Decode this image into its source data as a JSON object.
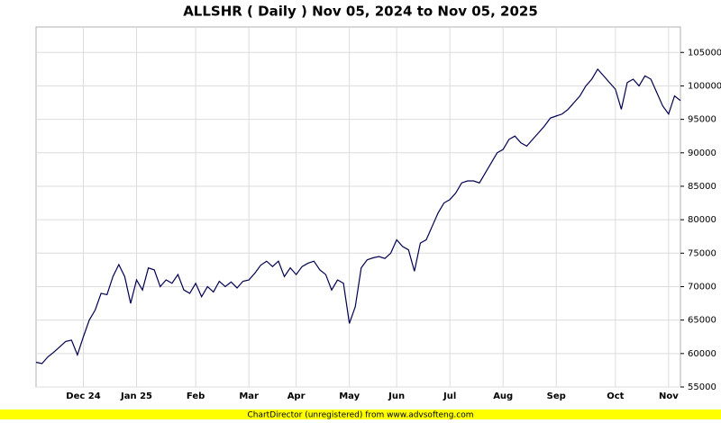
{
  "chart_data": {
    "type": "line",
    "title": "ALLSHR ( Daily ) Nov 05, 2024 to Nov 05, 2025",
    "footer": "ChartDirector (unregistered) from www.advsofteng.com",
    "categories": [
      null,
      null,
      null,
      null,
      null,
      null,
      null,
      null,
      "Dec 24",
      null,
      null,
      null,
      null,
      null,
      null,
      null,
      null,
      "Jan 25",
      null,
      null,
      null,
      null,
      null,
      null,
      null,
      null,
      null,
      "Feb",
      null,
      null,
      null,
      null,
      null,
      null,
      null,
      null,
      "Mar",
      null,
      null,
      null,
      null,
      null,
      null,
      null,
      "Apr",
      null,
      null,
      null,
      null,
      null,
      null,
      null,
      null,
      "May",
      null,
      null,
      null,
      null,
      null,
      null,
      null,
      "Jun",
      null,
      null,
      null,
      null,
      null,
      null,
      null,
      null,
      "Jul",
      null,
      null,
      null,
      null,
      null,
      null,
      null,
      null,
      "Aug",
      null,
      null,
      null,
      null,
      null,
      null,
      null,
      null,
      "Sep",
      null,
      null,
      null,
      null,
      null,
      null,
      null,
      null,
      null,
      "Oct",
      null,
      null,
      null,
      null,
      null,
      null,
      null,
      null,
      "Nov",
      null,
      null
    ],
    "series": [
      {
        "name": "ALLSHR",
        "color": "#000050",
        "values": [
          58700,
          58500,
          59500,
          60200,
          61000,
          61800,
          62000,
          59800,
          62500,
          65000,
          66500,
          69000,
          68800,
          71500,
          73300,
          71500,
          67500,
          71000,
          69500,
          72800,
          72500,
          70000,
          71000,
          70500,
          71800,
          69500,
          69000,
          70500,
          68500,
          70000,
          69200,
          70800,
          70000,
          70700,
          69800,
          70800,
          71000,
          72000,
          73200,
          73800,
          73000,
          73800,
          71500,
          72800,
          71800,
          73000,
          73500,
          73800,
          72500,
          71800,
          69500,
          71000,
          70500,
          64500,
          67000,
          72800,
          74000,
          74300,
          74500,
          74200,
          75000,
          77000,
          76000,
          75500,
          72300,
          76500,
          77000,
          79000,
          81000,
          82500,
          83000,
          84000,
          85500,
          85800,
          85800,
          85500,
          87000,
          88500,
          90000,
          90500,
          92000,
          92500,
          91500,
          91000,
          92000,
          93000,
          94000,
          95200,
          95500,
          95800,
          96500,
          97500,
          98500,
          100000,
          101000,
          102500,
          101500,
          100500,
          99500,
          96500,
          100500,
          101000,
          100000,
          101500,
          101000,
          99000,
          97000,
          95800,
          98500,
          97800
        ]
      }
    ],
    "ylim": [
      55000,
      108800
    ],
    "yticks": [
      55000,
      60000,
      65000,
      70000,
      75000,
      80000,
      85000,
      90000,
      95000,
      100000,
      105000
    ],
    "grid": true
  }
}
